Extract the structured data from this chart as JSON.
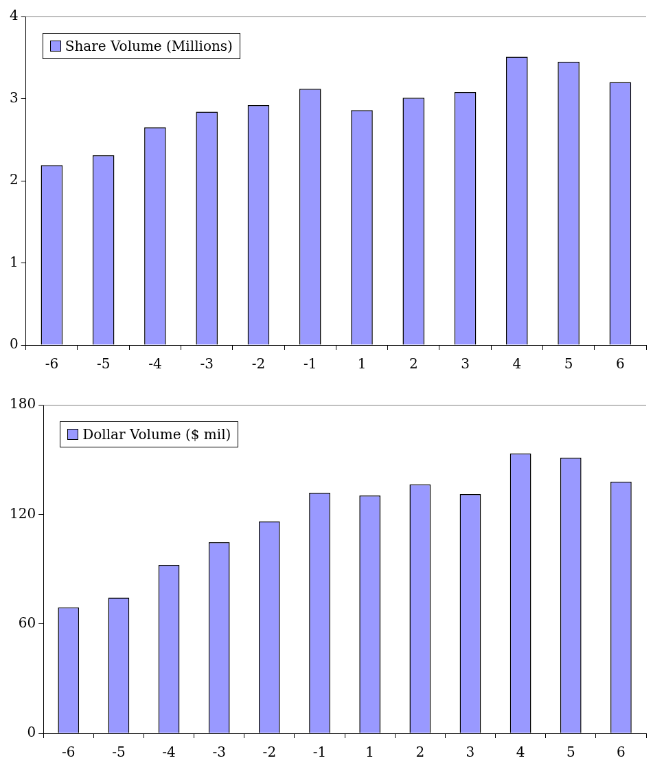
{
  "chart_data": [
    {
      "type": "bar",
      "categories": [
        "-6",
        "-5",
        "-4",
        "-3",
        "-2",
        "-1",
        "1",
        "2",
        "3",
        "4",
        "5",
        "6"
      ],
      "series": [
        {
          "name": "Share Volume (Millions)",
          "color": "#9999ff",
          "values": [
            2.19,
            2.31,
            2.65,
            2.84,
            2.92,
            3.12,
            2.86,
            3.01,
            3.08,
            3.51,
            3.45,
            3.2
          ]
        }
      ],
      "ylim": [
        0,
        4
      ],
      "yticks": [
        0,
        1,
        2,
        3,
        4
      ],
      "grid": false,
      "legend": "top left"
    },
    {
      "type": "bar",
      "categories": [
        "-6",
        "-5",
        "-4",
        "-3",
        "-2",
        "-1",
        "1",
        "2",
        "3",
        "4",
        "5",
        "6"
      ],
      "series": [
        {
          "name": "Dollar Volume ($ mil)",
          "color": "#9999ff",
          "values": [
            69,
            74.4,
            92.3,
            104.7,
            116.2,
            131.8,
            130.3,
            136.4,
            131,
            153.4,
            151,
            137.9
          ]
        }
      ],
      "ylim": [
        0,
        180
      ],
      "yticks": [
        0,
        60,
        120,
        180
      ],
      "grid": false,
      "legend": "top left"
    }
  ]
}
